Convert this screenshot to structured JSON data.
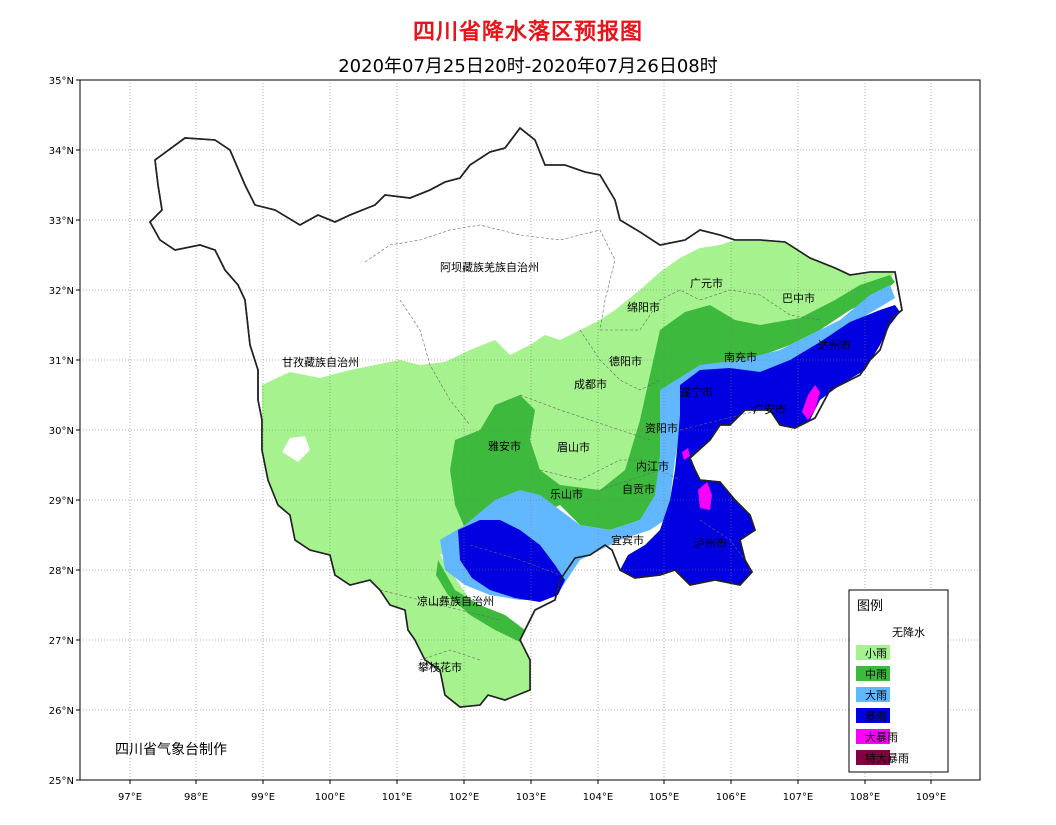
{
  "title": "四川省降水落区预报图",
  "subtitle": "2020年07月25日20时-2020年07月26日08时",
  "credit": "四川省气象台制作",
  "lat_ticks": [
    "35°N",
    "34°N",
    "33°N",
    "32°N",
    "31°N",
    "30°N",
    "29°N",
    "28°N",
    "27°N",
    "26°N",
    "25°N"
  ],
  "lon_ticks": [
    "97°E",
    "98°E",
    "99°E",
    "100°E",
    "101°E",
    "102°E",
    "103°E",
    "104°E",
    "105°E",
    "106°E",
    "107°E",
    "108°E",
    "109°E"
  ],
  "legend": {
    "title": "图例",
    "items": [
      {
        "label": "无降水",
        "color": "#ffffff"
      },
      {
        "label": "小雨",
        "color": "#a6f28f"
      },
      {
        "label": "中雨",
        "color": "#3dba3d"
      },
      {
        "label": "大雨",
        "color": "#61b8ff"
      },
      {
        "label": "暴雨",
        "color": "#0000e1"
      },
      {
        "label": "大暴雨",
        "color": "#fa00fa"
      },
      {
        "label": "特大暴雨",
        "color": "#800040"
      }
    ]
  },
  "regions": [
    {
      "name": "阿坝藏族羌族自治州"
    },
    {
      "name": "甘孜藏族自治州"
    },
    {
      "name": "广元市"
    },
    {
      "name": "巴中市"
    },
    {
      "name": "绵阳市"
    },
    {
      "name": "达州市"
    },
    {
      "name": "南充市"
    },
    {
      "name": "德阳市"
    },
    {
      "name": "成都市"
    },
    {
      "name": "遂宁市"
    },
    {
      "name": "广安市"
    },
    {
      "name": "资阳市"
    },
    {
      "name": "雅安市"
    },
    {
      "name": "眉山市"
    },
    {
      "name": "内江市"
    },
    {
      "name": "自贡市"
    },
    {
      "name": "乐山市"
    },
    {
      "name": "宜宾市"
    },
    {
      "name": "泸州市"
    },
    {
      "name": "凉山彝族自治州"
    },
    {
      "name": "攀枝花市"
    }
  ]
}
